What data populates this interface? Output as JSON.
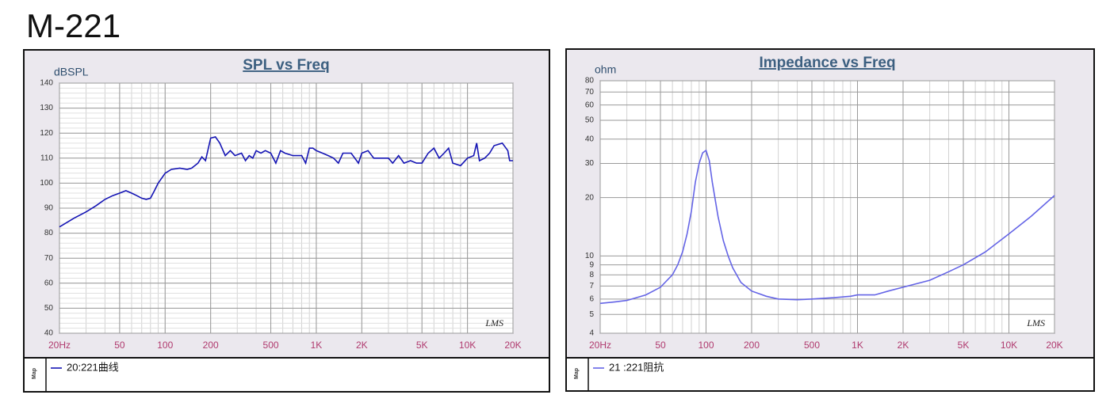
{
  "title": "M-221",
  "chart_data": [
    {
      "type": "line",
      "title": "SPL vs Freq",
      "y_label": "dBSPL",
      "watermark": "LMS",
      "legend_tab": "Map",
      "xlog": true,
      "ylog": false,
      "grid": true,
      "xlim": [
        20,
        20000
      ],
      "ylim": [
        40,
        140
      ],
      "xticks": [
        {
          "value": 20,
          "label": "20Hz"
        },
        50,
        100,
        200,
        500,
        {
          "value": 1000,
          "label": "1K"
        },
        {
          "value": 2000,
          "label": "2K"
        },
        {
          "value": 5000,
          "label": "5K"
        },
        {
          "value": 10000,
          "label": "10K"
        },
        {
          "value": 20000,
          "label": "20K"
        }
      ],
      "yticks": [
        40,
        50,
        60,
        70,
        80,
        90,
        100,
        110,
        120,
        130,
        140
      ],
      "x": [
        20,
        25,
        30,
        35,
        40,
        45,
        50,
        55,
        60,
        65,
        70,
        75,
        80,
        85,
        90,
        100,
        110,
        125,
        140,
        150,
        165,
        175,
        185,
        200,
        215,
        230,
        250,
        270,
        290,
        320,
        340,
        360,
        380,
        400,
        430,
        460,
        500,
        540,
        580,
        620,
        700,
        800,
        850,
        900,
        950,
        1000,
        1100,
        1200,
        1300,
        1400,
        1500,
        1700,
        1900,
        2000,
        2200,
        2400,
        2700,
        3000,
        3200,
        3500,
        3800,
        4200,
        4600,
        5000,
        5500,
        6000,
        6500,
        7000,
        7500,
        8000,
        9000,
        10000,
        11000,
        11500,
        12000,
        13000,
        14000,
        15000,
        17000,
        18500,
        19000,
        20000
      ],
      "series": [
        {
          "name": "20:221曲线",
          "color": "#1414b4",
          "values": [
            82.5,
            86,
            88.5,
            91,
            93.5,
            95,
            96,
            97,
            96,
            95,
            94,
            93.5,
            94,
            97,
            100,
            104,
            105.5,
            106,
            105.5,
            106,
            108,
            110.5,
            109,
            118,
            118.5,
            116,
            111,
            113,
            111,
            112,
            109,
            111,
            110,
            113,
            112,
            113,
            112,
            108,
            113,
            112,
            111,
            111,
            108,
            114,
            114,
            113,
            112,
            111,
            110,
            108,
            112,
            112,
            108,
            112,
            113,
            110,
            110,
            110,
            108,
            111,
            108,
            109,
            108,
            108,
            112,
            114,
            110,
            112,
            114,
            108,
            107,
            110,
            111,
            116,
            109,
            110,
            112,
            115,
            116,
            113,
            109,
            109
          ]
        }
      ]
    },
    {
      "type": "line",
      "title": "Impedance vs Freq",
      "y_label": "ohm",
      "watermark": "LMS",
      "legend_tab": "Map",
      "xlog": true,
      "ylog": true,
      "grid": true,
      "xlim": [
        20,
        20000
      ],
      "ylim": [
        4,
        80
      ],
      "xticks": [
        {
          "value": 20,
          "label": "20Hz"
        },
        50,
        100,
        200,
        500,
        {
          "value": 1000,
          "label": "1K"
        },
        {
          "value": 2000,
          "label": "2K"
        },
        {
          "value": 5000,
          "label": "5K"
        },
        {
          "value": 10000,
          "label": "10K"
        },
        {
          "value": 20000,
          "label": "20K"
        }
      ],
      "yticks": [
        4,
        5,
        6,
        7,
        8,
        9,
        10,
        20,
        30,
        40,
        50,
        60,
        70,
        80
      ],
      "x": [
        20,
        25,
        30,
        40,
        50,
        60,
        65,
        70,
        75,
        80,
        85,
        90,
        95,
        100,
        105,
        110,
        120,
        130,
        140,
        150,
        170,
        200,
        250,
        300,
        400,
        500,
        700,
        900,
        1000,
        1300,
        1600,
        2000,
        3000,
        4000,
        5000,
        7000,
        10000,
        14000,
        20000
      ],
      "series": [
        {
          "name": "21 :221阻抗",
          "color": "#6464e6",
          "values": [
            5.7,
            5.8,
            5.9,
            6.3,
            6.9,
            8,
            9,
            10.5,
            13,
            17,
            24,
            30,
            34,
            35,
            31,
            24,
            16,
            12,
            10,
            8.7,
            7.3,
            6.6,
            6.2,
            6.0,
            5.95,
            6.0,
            6.1,
            6.2,
            6.3,
            6.3,
            6.6,
            6.9,
            7.5,
            8.3,
            9.0,
            10.5,
            13,
            16,
            20.5
          ]
        }
      ]
    }
  ]
}
